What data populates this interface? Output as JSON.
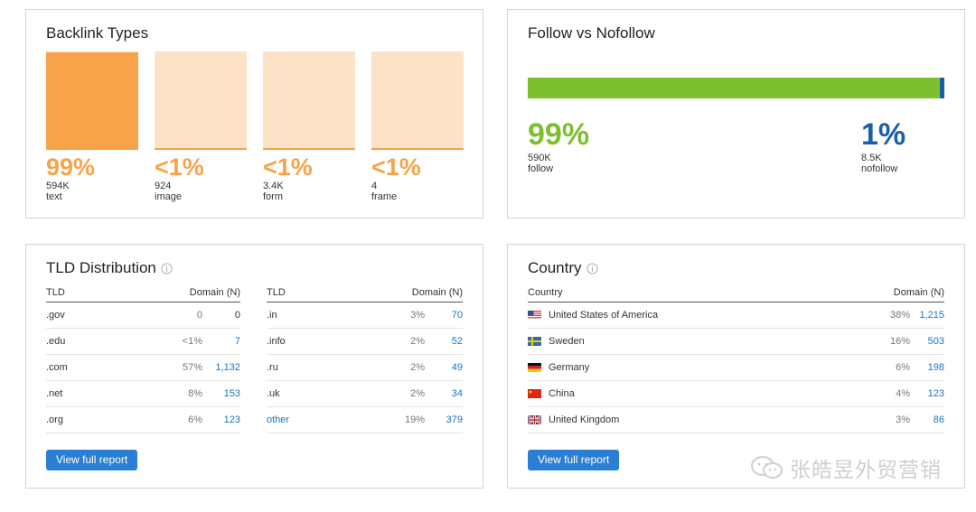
{
  "backlink_types": {
    "title": "Backlink Types",
    "items": [
      {
        "pct": "99%",
        "count": "594K",
        "label": "text",
        "fill": 0.99
      },
      {
        "pct": "<1%",
        "count": "924",
        "label": "image",
        "fill": 0.01
      },
      {
        "pct": "<1%",
        "count": "3.4K",
        "label": "form",
        "fill": 0.01
      },
      {
        "pct": "<1%",
        "count": "4",
        "label": "frame",
        "fill": 0.01
      }
    ]
  },
  "follow": {
    "title": "Follow vs Nofollow",
    "follow_pct": "99%",
    "follow_count": "590K",
    "follow_label": "follow",
    "nofollow_pct": "1%",
    "nofollow_count": "8.5K",
    "nofollow_label": "nofollow",
    "nofollow_fraction": 0.01,
    "follow_color": "#7dbf2e",
    "nofollow_color": "#1a5fa8"
  },
  "tld": {
    "title": "TLD Distribution",
    "col_tld": "TLD",
    "col_domain": "Domain (N)",
    "left": [
      {
        "tld": ".gov",
        "pct": "0",
        "n": "0"
      },
      {
        "tld": ".edu",
        "pct": "<1%",
        "n": "7"
      },
      {
        "tld": ".com",
        "pct": "57%",
        "n": "1,132"
      },
      {
        "tld": ".net",
        "pct": "8%",
        "n": "153"
      },
      {
        "tld": ".org",
        "pct": "6%",
        "n": "123"
      }
    ],
    "right": [
      {
        "tld": ".in",
        "pct": "3%",
        "n": "70"
      },
      {
        "tld": ".info",
        "pct": "2%",
        "n": "52"
      },
      {
        "tld": ".ru",
        "pct": "2%",
        "n": "49"
      },
      {
        "tld": ".uk",
        "pct": "2%",
        "n": "34"
      },
      {
        "tld": "other",
        "pct": "19%",
        "n": "379"
      }
    ],
    "button": "View full report"
  },
  "country": {
    "title": "Country",
    "col_country": "Country",
    "col_domain": "Domain (N)",
    "rows": [
      {
        "flag": "us-flag-icon",
        "name": "United States of America",
        "pct": "38%",
        "n": "1,215"
      },
      {
        "flag": "se-flag-icon",
        "name": "Sweden",
        "pct": "16%",
        "n": "503"
      },
      {
        "flag": "de-flag-icon",
        "name": "Germany",
        "pct": "6%",
        "n": "198"
      },
      {
        "flag": "cn-flag-icon",
        "name": "China",
        "pct": "4%",
        "n": "123"
      },
      {
        "flag": "gb-flag-icon",
        "name": "United Kingdom",
        "pct": "3%",
        "n": "86"
      }
    ],
    "button": "View full report"
  },
  "watermark": "张皓昱外贸营销"
}
